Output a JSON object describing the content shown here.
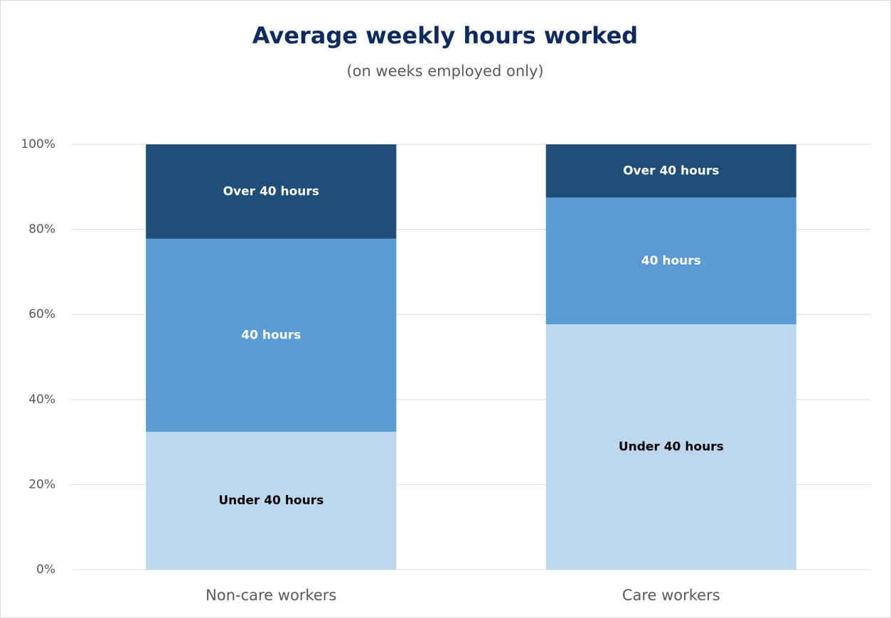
{
  "chart_data": {
    "type": "stacked_bar",
    "title": "Average weekly hours worked",
    "subtitle": "(on weeks employed only)",
    "categories": [
      "Non-care workers",
      "Care workers"
    ],
    "series": [
      {
        "name": "Under 40 hours",
        "color": "#bdd7ee",
        "label_color": "#000000",
        "values": [
          32.4,
          57.7
        ]
      },
      {
        "name": "40 hours",
        "color": "#5b9bd5",
        "label_color": "#ffffff",
        "values": [
          45.4,
          29.8
        ]
      },
      {
        "name": "Over 40 hours",
        "color": "#1f4e79",
        "label_color": "#ffffff",
        "values": [
          22.2,
          12.5
        ]
      }
    ],
    "ylim": [
      0,
      100
    ],
    "yticks": [
      {
        "value": 0,
        "label": "0%"
      },
      {
        "value": 20,
        "label": "20%"
      },
      {
        "value": 40,
        "label": "40%"
      },
      {
        "value": 60,
        "label": "60%"
      },
      {
        "value": 80,
        "label": "80%"
      },
      {
        "value": 100,
        "label": "100%"
      }
    ],
    "grid": true
  }
}
